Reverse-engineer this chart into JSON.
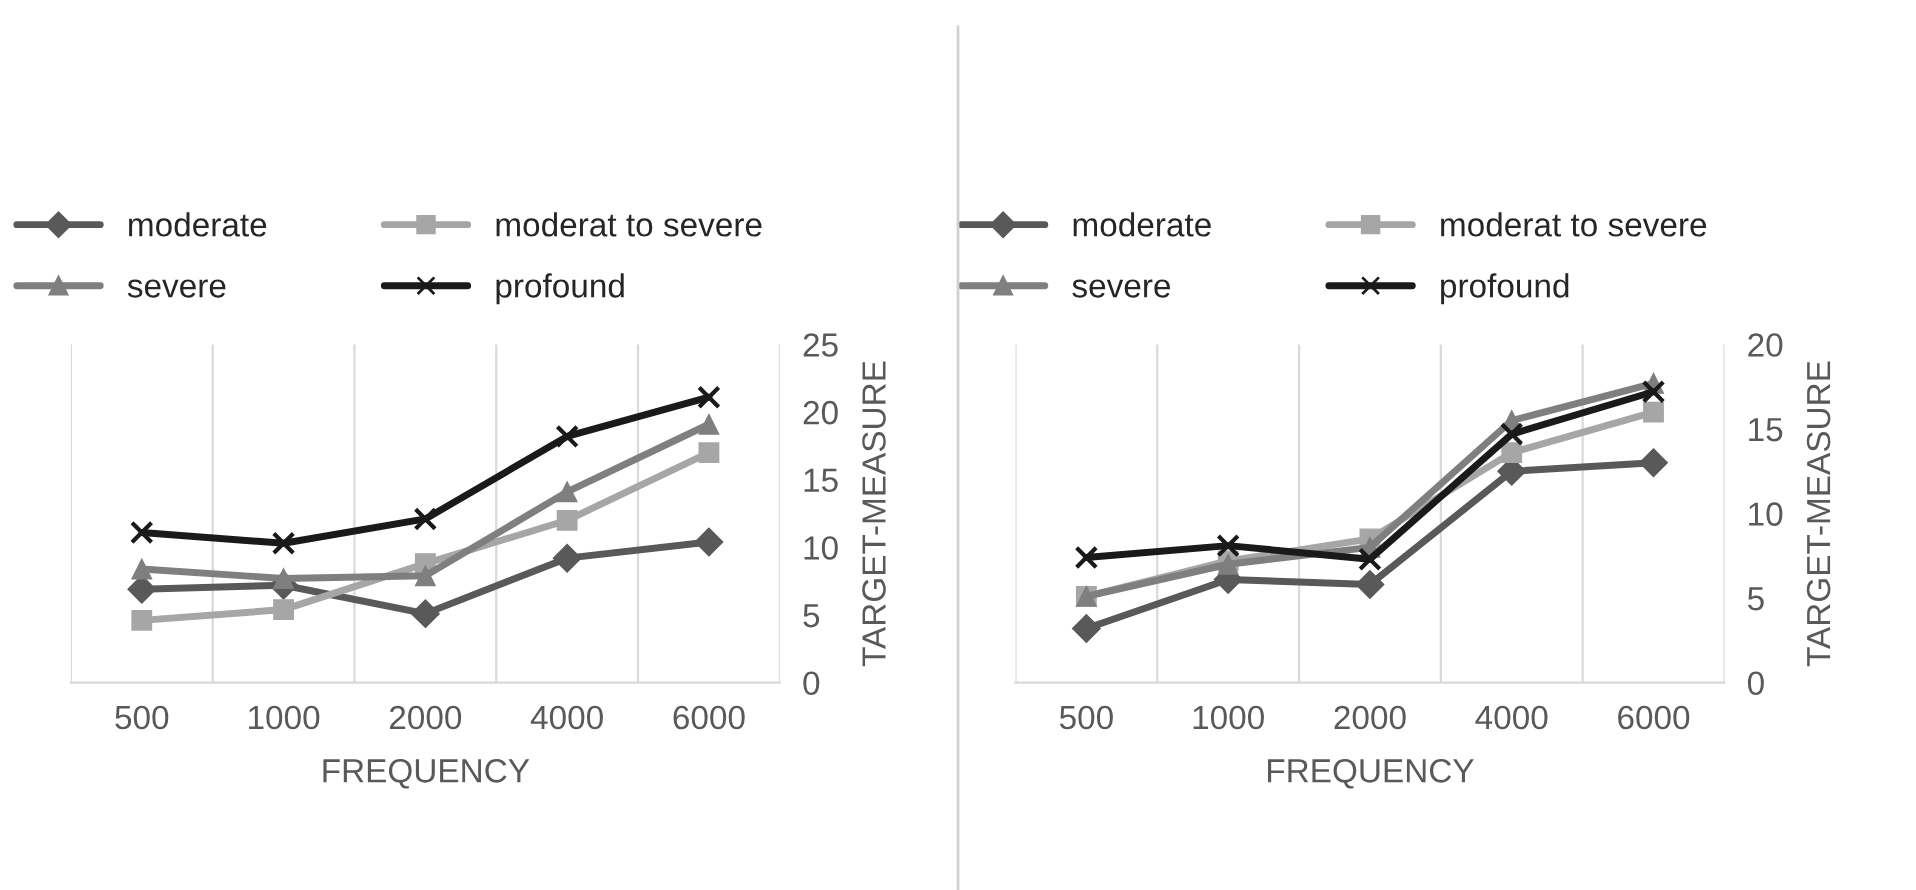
{
  "chart_data": [
    {
      "type": "line",
      "xlabel": "FREQUENCY",
      "ylabel": "TARGET-MEASURE",
      "categories": [
        "500",
        "1000",
        "2000",
        "4000",
        "6000"
      ],
      "ylim": [
        0,
        25
      ],
      "yticks": [
        0,
        5,
        10,
        15,
        20,
        25
      ],
      "grid": "x",
      "legend": "top",
      "series": [
        {
          "name": "moderate",
          "color": "#595959",
          "marker": "diamond",
          "values": [
            6.9,
            7.2,
            5.1,
            9.2,
            10.4
          ]
        },
        {
          "name": "moderat to severe",
          "color": "#a6a6a6",
          "marker": "square",
          "values": [
            4.6,
            5.4,
            8.8,
            12.0,
            17.0
          ]
        },
        {
          "name": "severe",
          "color": "#7f7f7f",
          "marker": "triangle",
          "values": [
            8.4,
            7.7,
            7.9,
            14.1,
            19.1
          ]
        },
        {
          "name": "profound",
          "color": "#1a1a1a",
          "marker": "cross",
          "values": [
            11.1,
            10.3,
            12.1,
            18.2,
            21.1
          ]
        }
      ]
    },
    {
      "type": "line",
      "xlabel": "FREQUENCY",
      "ylabel": "TARGET-MEASURE",
      "categories": [
        "500",
        "1000",
        "2000",
        "4000",
        "6000"
      ],
      "ylim": [
        0,
        20
      ],
      "yticks": [
        0,
        5,
        10,
        15,
        20
      ],
      "grid": "x",
      "legend": "top",
      "series": [
        {
          "name": "moderate",
          "color": "#595959",
          "marker": "diamond",
          "values": [
            3.2,
            6.1,
            5.8,
            12.5,
            13.0
          ]
        },
        {
          "name": "moderat to severe",
          "color": "#a6a6a6",
          "marker": "square",
          "values": [
            5.1,
            7.2,
            8.5,
            13.6,
            16.0
          ]
        },
        {
          "name": "severe",
          "color": "#7f7f7f",
          "marker": "triangle",
          "values": [
            5.1,
            7.0,
            8.0,
            15.5,
            17.7
          ]
        },
        {
          "name": "profound",
          "color": "#1a1a1a",
          "marker": "cross",
          "values": [
            7.4,
            8.1,
            7.3,
            14.7,
            17.2
          ]
        }
      ]
    }
  ]
}
